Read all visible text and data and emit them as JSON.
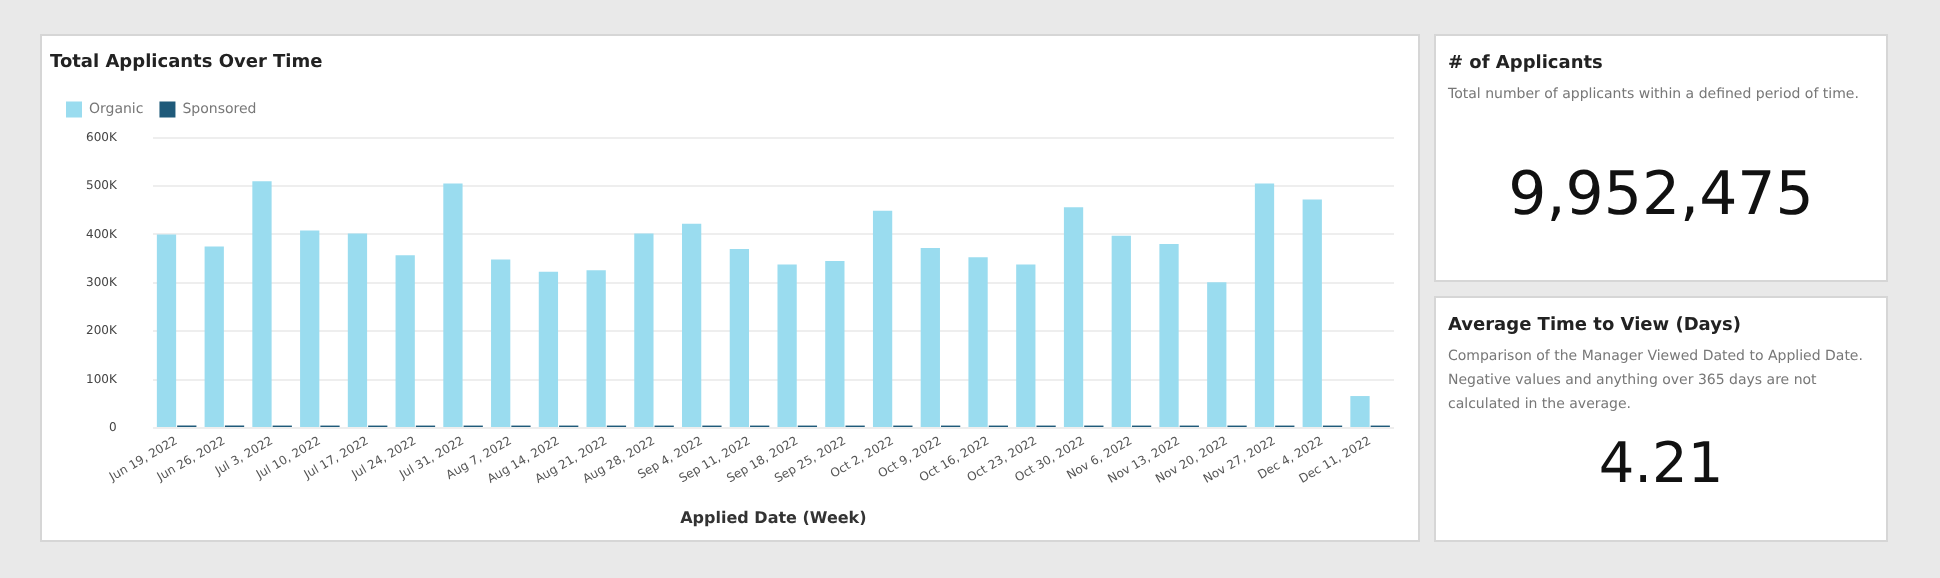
{
  "chart_data": [
    {
      "type": "bar",
      "title": "Total Applicants Over Time",
      "xlabel": "Applied Date (Week)",
      "categories": [
        "Jun 19, 2022",
        "Jun 26, 2022",
        "Jul 3, 2022",
        "Jul 10, 2022",
        "Jul 17, 2022",
        "Jul 24, 2022",
        "Jul 31, 2022",
        "Aug 7, 2022",
        "Aug 14, 2022",
        "Aug 21, 2022",
        "Aug 28, 2022",
        "Sep 4, 2022",
        "Sep 11, 2022",
        "Sep 18, 2022",
        "Sep 25, 2022",
        "Oct 2, 2022",
        "Oct 9, 2022",
        "Oct 16, 2022",
        "Oct 23, 2022",
        "Oct 30, 2022",
        "Nov 6, 2022",
        "Nov 13, 2022",
        "Nov 20, 2022",
        "Nov 27, 2022",
        "Dec 4, 2022",
        "Dec 11, 2022"
      ],
      "series": [
        {
          "name": "Organic",
          "color": "#9adcef",
          "values": [
            400000,
            375000,
            510000,
            408000,
            402000,
            357000,
            505000,
            348000,
            323000,
            326000,
            402000,
            422000,
            370000,
            338000,
            345000,
            449000,
            372000,
            353000,
            338000,
            456000,
            397000,
            380000,
            301000,
            505000,
            472000,
            66000
          ]
        },
        {
          "name": "Sponsored",
          "color": "#1f5a7a",
          "values": [
            5000,
            5000,
            5000,
            5000,
            5000,
            5000,
            5000,
            5000,
            5000,
            5000,
            5000,
            5000,
            5000,
            5000,
            5000,
            5000,
            5000,
            5000,
            5000,
            5000,
            5000,
            5000,
            5000,
            5000,
            5000,
            5000
          ]
        }
      ],
      "ylim": [
        0,
        600000
      ],
      "yticks": [
        {
          "value": 0,
          "label": "0"
        },
        {
          "value": 100000,
          "label": "100K"
        },
        {
          "value": 200000,
          "label": "200K"
        },
        {
          "value": 300000,
          "label": "300K"
        },
        {
          "value": 400000,
          "label": "400K"
        },
        {
          "value": 500000,
          "label": "500K"
        },
        {
          "value": 600000,
          "label": "600K"
        }
      ],
      "grid": "y",
      "legend": "top left"
    },
    {
      "type": "other",
      "title": "# of Applicants",
      "subtitle": "Total number of applicants within a defined period of time.",
      "annotations": [
        "9,952,475"
      ]
    },
    {
      "type": "other",
      "title": "Average Time to View (Days)",
      "subtitle": "Comparison of the Manager Viewed Dated to Applied Date. Negative values and anything over 365 days are not calculated in the average.",
      "annotations": [
        "4.21"
      ]
    }
  ]
}
